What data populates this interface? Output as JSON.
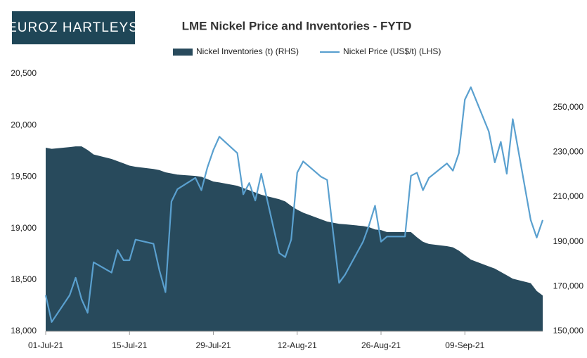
{
  "logo": "EUROZ HARTLEYS",
  "chart_data": {
    "type": "combo",
    "title": "LME Nickel Price and Inventories - FYTD",
    "x": [
      "2021-07-01",
      "2021-07-02",
      "2021-07-05",
      "2021-07-06",
      "2021-07-07",
      "2021-07-08",
      "2021-07-09",
      "2021-07-12",
      "2021-07-13",
      "2021-07-14",
      "2021-07-15",
      "2021-07-16",
      "2021-07-19",
      "2021-07-20",
      "2021-07-21",
      "2021-07-22",
      "2021-07-23",
      "2021-07-26",
      "2021-07-27",
      "2021-07-28",
      "2021-07-29",
      "2021-07-30",
      "2021-08-02",
      "2021-08-03",
      "2021-08-04",
      "2021-08-05",
      "2021-08-06",
      "2021-08-09",
      "2021-08-10",
      "2021-08-11",
      "2021-08-12",
      "2021-08-13",
      "2021-08-16",
      "2021-08-17",
      "2021-08-18",
      "2021-08-19",
      "2021-08-20",
      "2021-08-23",
      "2021-08-24",
      "2021-08-25",
      "2021-08-26",
      "2021-08-27",
      "2021-08-30",
      "2021-08-31",
      "2021-09-01",
      "2021-09-02",
      "2021-09-03",
      "2021-09-06",
      "2021-09-07",
      "2021-09-08",
      "2021-09-09",
      "2021-09-10",
      "2021-09-13",
      "2021-09-14",
      "2021-09-15",
      "2021-09-16",
      "2021-09-17",
      "2021-09-20",
      "2021-09-21",
      "2021-09-22"
    ],
    "series": [
      {
        "name": "Nickel Inventories (t) (RHS)",
        "type": "area",
        "axis": "y2",
        "color": "#284a5c",
        "values": [
          232000,
          231500,
          232300,
          232600,
          232600,
          231000,
          229000,
          227000,
          226000,
          225000,
          224000,
          223500,
          222500,
          222000,
          221000,
          220500,
          220000,
          219400,
          219000,
          218000,
          216900,
          216500,
          215000,
          214000,
          213000,
          212000,
          211000,
          209000,
          208000,
          206000,
          204300,
          203000,
          200000,
          199000,
          198500,
          198000,
          197800,
          197000,
          196500,
          195500,
          195200,
          194300,
          194300,
          194300,
          192000,
          190000,
          189000,
          188000,
          187500,
          186000,
          184000,
          182000,
          179000,
          178000,
          176500,
          175000,
          173500,
          171500,
          168000,
          166000
        ]
      },
      {
        "name": "Nickel Price (US$/t) (LHS)",
        "type": "line",
        "color": "#5aa0cf",
        "values": [
          18350,
          18090,
          18350,
          18520,
          18310,
          18180,
          18670,
          18570,
          18790,
          18690,
          18690,
          18890,
          18850,
          18590,
          18380,
          19260,
          19380,
          19490,
          19370,
          19590,
          19760,
          19890,
          19730,
          19330,
          19440,
          19270,
          19530,
          18760,
          18720,
          18890,
          19540,
          19650,
          19500,
          19470,
          18960,
          18470,
          18550,
          18870,
          19030,
          19220,
          18870,
          18920,
          18920,
          19510,
          19540,
          19370,
          19490,
          19630,
          19560,
          19730,
          20250,
          20370,
          19940,
          19640,
          19840,
          19530,
          20060,
          19080,
          18910,
          19080
        ]
      }
    ],
    "xlim": [
      "2021-07-01",
      "2021-09-22"
    ],
    "xticks": [
      {
        "value": "2021-07-01",
        "label": "01-Jul-21"
      },
      {
        "value": "2021-07-15",
        "label": "15-Jul-21"
      },
      {
        "value": "2021-07-29",
        "label": "29-Jul-21"
      },
      {
        "value": "2021-08-12",
        "label": "12-Aug-21"
      },
      {
        "value": "2021-08-26",
        "label": "26-Aug-21"
      },
      {
        "value": "2021-09-09",
        "label": "09-Sep-21"
      }
    ],
    "ylim": [
      18000,
      20500
    ],
    "yticks": [
      {
        "value": 18000,
        "label": "18,000"
      },
      {
        "value": 18500,
        "label": "18,500"
      },
      {
        "value": 19000,
        "label": "19,000"
      },
      {
        "value": 19500,
        "label": "19,500"
      },
      {
        "value": 20000,
        "label": "20,000"
      },
      {
        "value": 20500,
        "label": "20,500"
      }
    ],
    "y2lim": [
      150000,
      265000
    ],
    "y2ticks": [
      {
        "value": 150000,
        "label": "150,000"
      },
      {
        "value": 170000,
        "label": "170,000"
      },
      {
        "value": 190000,
        "label": "190,000"
      },
      {
        "value": 210000,
        "label": "210,000"
      },
      {
        "value": 230000,
        "label": "230,000"
      },
      {
        "value": 250000,
        "label": "250,000"
      }
    ],
    "legend": "top"
  }
}
